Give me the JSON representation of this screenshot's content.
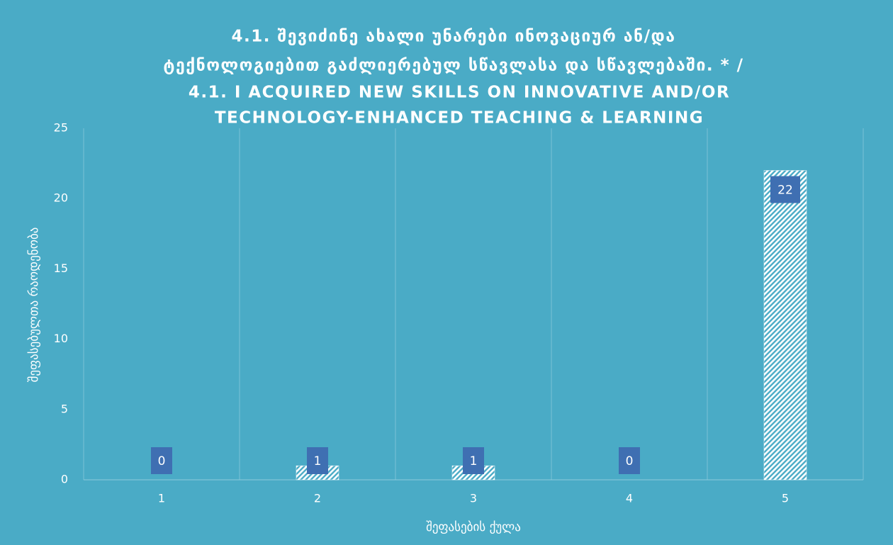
{
  "chart_data": {
    "type": "bar",
    "title": [
      "4.1. შევიძინე ახალი უნარები ინოვაციურ ან/და",
      "ტექნოლოგიებით გაძლიერებულ სწავლასა და სწავლებაში. * /",
      "4.1. I ACQUIRED NEW SKILLS ON INNOVATIVE AND/OR",
      "TECHNOLOGY-ENHANCED TEACHING & LEARNING"
    ],
    "x_label": "შეფასების ქულა",
    "y_label": "შეფასებულთა რაოდენობა",
    "categories": [
      "1",
      "2",
      "3",
      "4",
      "5"
    ],
    "values": [
      0,
      1,
      1,
      0,
      22
    ],
    "color": "#ffffff",
    "label_box_color": "#3f6fb2",
    "ylim": [
      0,
      25
    ],
    "yticks": [
      0,
      5,
      10,
      15,
      20,
      25
    ],
    "grid": false
  }
}
